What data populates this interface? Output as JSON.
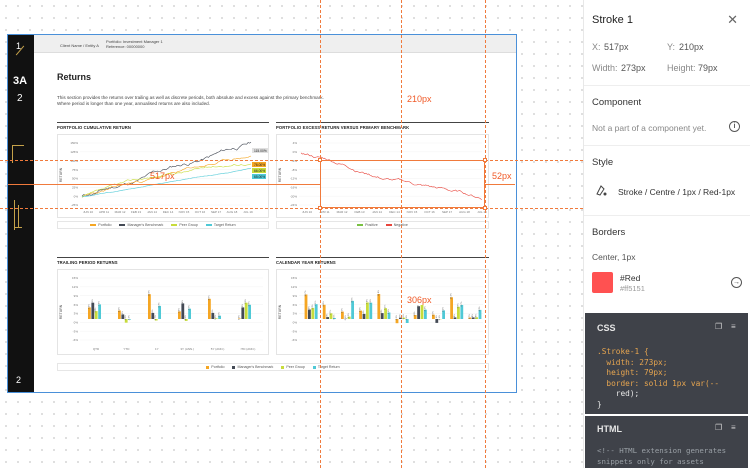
{
  "canvas": {
    "left_bar": {
      "top_num": "1",
      "section": "3A",
      "sub": "2",
      "page_num": "2"
    },
    "header": {
      "client": "Client Name / Entity A",
      "portfolio": "Portfolio: Investment Manager 1",
      "reference": "Reference: 00000000"
    },
    "page_title": "Returns",
    "description": "This section provides the returns over trailing as well as discrete periods, both absolute and excess against the primary benchmark. Where period is longer than one year, annualised returns are also included.",
    "panels": {
      "cumulative": {
        "title": "PORTFOLIO CUMULATIVE RETURN",
        "ylabel": "RETURN",
        "legend": [
          "Portfolio",
          "Manager's Benchmark",
          "Peer Group",
          "Target Return"
        ],
        "end_labels": [
          "115.00%",
          "76.00%",
          "66.00%",
          "65.00%"
        ]
      },
      "excess": {
        "title": "PORTFOLIO EXCESS RETURN VERSUS PRIMARY BENCHMARK",
        "ylabel": "RETURN",
        "legend": [
          "Positive",
          "Negative"
        ]
      },
      "trailing": {
        "title": "TRAILING PERIOD RETURNS",
        "ylabel": "RETURN",
        "categories": [
          "QTD",
          "YTD",
          "1Y",
          "3Y (ANN.)",
          "5Y (ANN.)",
          "ITD (ANN.)"
        ]
      },
      "calendar": {
        "title": "CALENDAR YEAR RETURNS",
        "ylabel": "RETURN"
      },
      "bar_legend": [
        "Portfolio",
        "Manager's Benchmark",
        "Peer Group",
        "Target Return"
      ]
    },
    "time_ticks": [
      "JUN 10",
      "APR 11",
      "MAR 12",
      "FEB 13",
      "JAN 14",
      "DEC 14",
      "NOV 15",
      "OCT 16",
      "SEP 17",
      "AUG 18",
      "JUL 19"
    ],
    "cum_yticks": [
      "150%",
      "125%",
      "100%",
      "75%",
      "50%",
      "25%",
      "0%",
      "-25%"
    ],
    "exc_yticks": [
      "4%",
      "0%",
      "-4%",
      "-8%",
      "-12%",
      "-16%",
      "-20%",
      "-24%"
    ],
    "bar_yticks": [
      "15%",
      "12%",
      "9%",
      "6%",
      "3%",
      "0%",
      "-3%",
      "-6%"
    ],
    "selection": {
      "width_label": "517px",
      "top_label": "210px",
      "height_label": "52px",
      "bottom_label": "306px"
    }
  },
  "inspect": {
    "title": "Stroke 1",
    "x_label": "X:",
    "x_value": "517px",
    "y_label": "Y:",
    "y_value": "210px",
    "w_label": "Width:",
    "w_value": "273px",
    "h_label": "Height:",
    "h_value": "79px",
    "component_heading": "Component",
    "component_text": "Not a part of a component yet.",
    "style_heading": "Style",
    "style_value": "Stroke / Centre / 1px / Red-1px",
    "borders_heading": "Borders",
    "borders_value": "Center, 1px",
    "color_name": "#Red",
    "color_hex": "#ff5151",
    "swatch_color": "#ff5151",
    "css_heading": "CSS",
    "html_heading": "HTML",
    "css_lines": [
      ".Stroke-1 {",
      "  width: 273px;",
      "  height: 79px;",
      "  border: solid 1px var(--",
      "    red);",
      "}"
    ],
    "html_lines": [
      "<!-- HTML extension generates",
      "snippets only for assets"
    ]
  },
  "colors": {
    "portfolio": "#f5a623",
    "benchmark": "#444a55",
    "peer": "#c8dc3c",
    "target": "#4fc9d6",
    "negative": "#e8453c",
    "positive": "#7ac143",
    "accent": "#f07a3c"
  }
}
